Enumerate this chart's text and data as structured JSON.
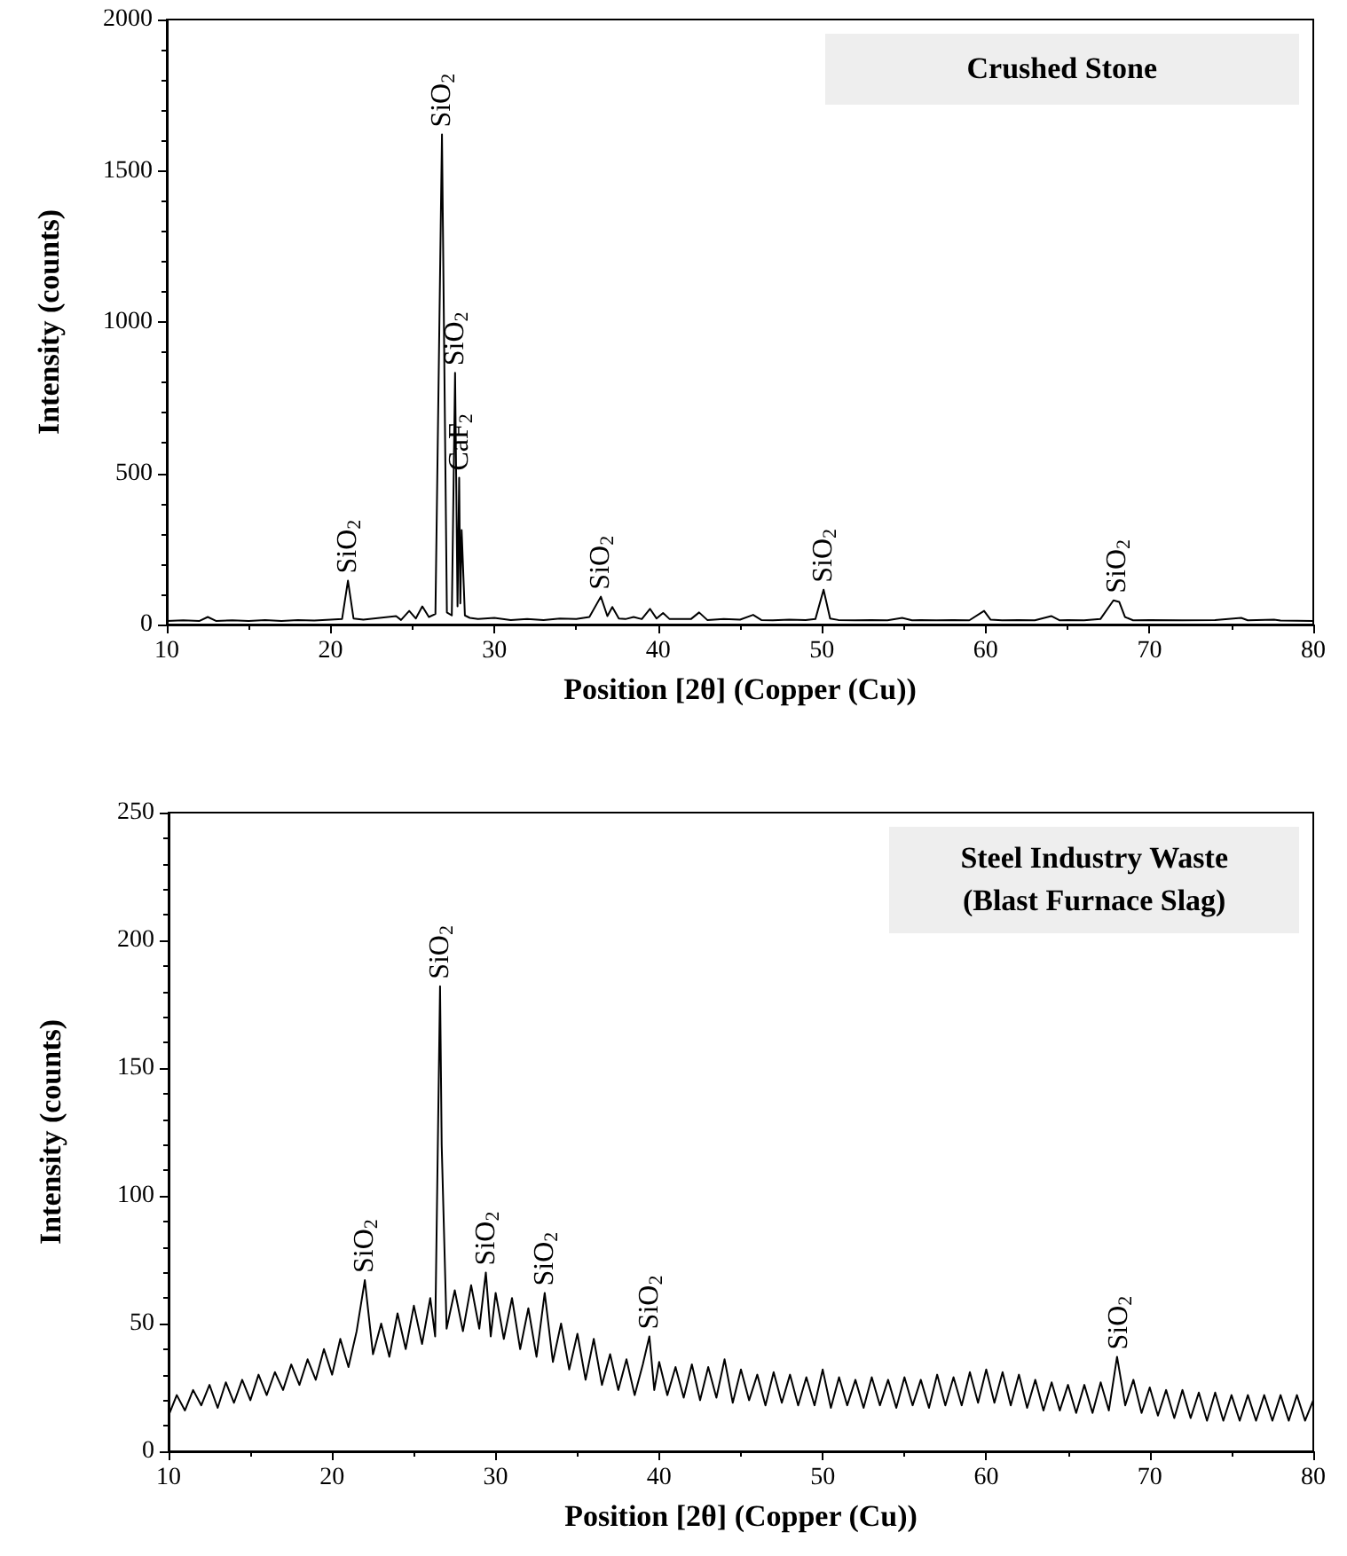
{
  "chart_data": [
    {
      "type": "line",
      "title": "Crushed Stone",
      "xlabel": "Position [2θ] (Copper (Cu))",
      "ylabel": "Intensity (counts)",
      "color": "#000000",
      "marker": "none",
      "xlim": [
        10,
        80
      ],
      "ylim": [
        0,
        2000
      ],
      "xticks": [
        10,
        20,
        30,
        40,
        50,
        60,
        70,
        80
      ],
      "yticks": [
        0,
        500,
        1000,
        1500,
        2000
      ],
      "x": [
        10,
        11,
        12,
        12.5,
        13,
        14,
        15,
        16,
        17,
        18,
        19,
        20,
        20.7,
        21.06,
        21.4,
        22,
        23,
        24,
        24.3,
        24.8,
        25.2,
        25.6,
        26,
        26.4,
        26.8,
        27.1,
        27.4,
        27.6,
        27.75,
        27.85,
        27.92,
        28.0,
        28.2,
        28.5,
        29,
        30,
        31,
        32,
        33,
        34,
        35,
        35.8,
        36.5,
        36.9,
        37.2,
        37.6,
        38,
        38.5,
        39,
        39.5,
        39.9,
        40.3,
        40.7,
        42,
        42.5,
        43,
        44,
        45,
        45.8,
        46.3,
        47,
        48,
        49,
        49.6,
        50.1,
        50.5,
        51,
        52,
        53,
        54,
        54.9,
        55.5,
        56,
        57,
        58,
        59,
        59.9,
        60.3,
        61,
        62,
        63,
        64,
        64.5,
        65,
        66,
        67,
        67.8,
        68.15,
        68.5,
        69,
        70,
        72,
        74,
        75.6,
        76,
        77.6,
        78,
        80
      ],
      "values": [
        12,
        14,
        12,
        25,
        12,
        14,
        12,
        15,
        12,
        15,
        13,
        16,
        18,
        145,
        20,
        16,
        22,
        28,
        15,
        45,
        20,
        60,
        25,
        35,
        1620,
        40,
        30,
        832,
        60,
        485,
        70,
        312,
        30,
        22,
        18,
        22,
        15,
        18,
        15,
        20,
        18,
        25,
        92,
        28,
        58,
        20,
        18,
        25,
        18,
        52,
        20,
        38,
        18,
        18,
        40,
        15,
        18,
        16,
        32,
        15,
        14,
        16,
        15,
        18,
        115,
        20,
        15,
        14,
        15,
        14,
        22,
        14,
        15,
        14,
        15,
        14,
        45,
        16,
        14,
        15,
        14,
        28,
        14,
        15,
        14,
        18,
        80,
        75,
        25,
        14,
        15,
        14,
        15,
        22,
        14,
        16,
        13,
        12
      ],
      "annotations": [
        {
          "text": "SiO$_{2}$",
          "x": 21.06,
          "y": 145
        },
        {
          "text": "SiO$_{2}$",
          "x": 26.8,
          "y": 1620
        },
        {
          "text": "SiO$_{2}$",
          "x": 27.6,
          "y": 832
        },
        {
          "text": "CaF$_{2}$",
          "x": 27.9,
          "y": 485
        },
        {
          "text": "SiO$_{2}$",
          "x": 36.5,
          "y": 92
        },
        {
          "text": "SiO$_{2}$",
          "x": 50.1,
          "y": 115
        },
        {
          "text": "SiO$_{2}$",
          "x": 68,
          "y": 80
        }
      ]
    },
    {
      "type": "line",
      "title": "Steel Industry Waste\n(Blast Furnace Slag)",
      "xlabel": "Position [2θ] (Copper (Cu))",
      "ylabel": "Intensity (counts)",
      "color": "#000000",
      "marker": "none",
      "xlim": [
        10,
        80
      ],
      "ylim": [
        0,
        250
      ],
      "xticks": [
        10,
        20,
        30,
        40,
        50,
        60,
        70,
        80
      ],
      "yticks": [
        0,
        50,
        100,
        150,
        200,
        250
      ],
      "x": [
        10,
        10.5,
        11,
        11.5,
        12,
        12.5,
        13,
        13.5,
        14,
        14.5,
        15,
        15.5,
        16,
        16.5,
        17,
        17.5,
        18,
        18.5,
        19,
        19.5,
        20,
        20.5,
        21,
        21.5,
        22,
        22.5,
        23,
        23.5,
        24,
        24.5,
        25,
        25.5,
        26,
        26.3,
        26.6,
        26.7,
        27,
        27.5,
        28,
        28.5,
        29,
        29.4,
        29.7,
        30,
        30.5,
        31,
        31.5,
        32,
        32.5,
        33,
        33.5,
        34,
        34.5,
        35,
        35.5,
        36,
        36.5,
        37,
        37.5,
        38,
        38.5,
        39,
        39.4,
        39.7,
        40,
        40.5,
        41,
        41.5,
        42,
        42.5,
        43,
        43.5,
        44,
        44.5,
        45,
        45.5,
        46,
        46.5,
        47,
        47.5,
        48,
        48.5,
        49,
        49.5,
        50,
        50.5,
        51,
        51.5,
        52,
        52.5,
        53,
        53.5,
        54,
        54.5,
        55,
        55.5,
        56,
        56.5,
        57,
        57.5,
        58,
        58.5,
        59,
        59.5,
        60,
        60.5,
        61,
        61.5,
        62,
        62.5,
        63,
        63.5,
        64,
        64.5,
        65,
        65.5,
        66,
        66.5,
        67,
        67.5,
        68,
        68.5,
        69,
        69.5,
        70,
        70.5,
        71,
        71.5,
        72,
        72.5,
        73,
        73.5,
        74,
        74.5,
        75,
        75.5,
        76,
        76.5,
        77,
        77.5,
        78,
        78.5,
        79,
        79.5,
        80
      ],
      "values": [
        14,
        22,
        16,
        24,
        18,
        26,
        17,
        27,
        19,
        28,
        20,
        30,
        22,
        31,
        24,
        34,
        26,
        36,
        28,
        40,
        30,
        44,
        33,
        47,
        67,
        38,
        50,
        37,
        54,
        40,
        57,
        42,
        60,
        45,
        182,
        120,
        48,
        63,
        47,
        65,
        48,
        70,
        45,
        62,
        44,
        60,
        40,
        56,
        37,
        62,
        35,
        50,
        32,
        46,
        28,
        44,
        26,
        38,
        24,
        36,
        22,
        34,
        45,
        24,
        35,
        22,
        33,
        21,
        34,
        20,
        33,
        21,
        36,
        19,
        32,
        20,
        30,
        18,
        31,
        19,
        30,
        18,
        29,
        18,
        32,
        17,
        29,
        18,
        28,
        17,
        29,
        18,
        28,
        17,
        29,
        18,
        28,
        17,
        30,
        18,
        29,
        18,
        31,
        19,
        32,
        19,
        31,
        18,
        30,
        17,
        28,
        16,
        27,
        16,
        26,
        15,
        26,
        15,
        27,
        16,
        37,
        18,
        28,
        15,
        25,
        14,
        24,
        13,
        24,
        13,
        23,
        12,
        23,
        12,
        22,
        12,
        22,
        12,
        22,
        12,
        22,
        12,
        22,
        12,
        20
      ],
      "annotations": [
        {
          "text": "SiO$_{2}$",
          "x": 22,
          "y": 67
        },
        {
          "text": "SiO$_{2}$",
          "x": 26.6,
          "y": 182
        },
        {
          "text": "SiO$_{2}$",
          "x": 29.4,
          "y": 70
        },
        {
          "text": "SiO$_{2}$",
          "x": 33,
          "y": 62
        },
        {
          "text": "SiO$_{2}$",
          "x": 39.4,
          "y": 45
        },
        {
          "text": "SiO$_{2}$",
          "x": 68.1,
          "y": 37
        }
      ]
    }
  ]
}
